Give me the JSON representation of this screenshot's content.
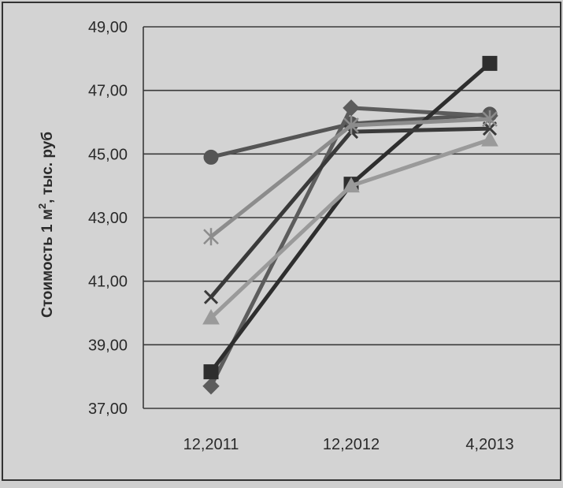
{
  "chart_data": {
    "type": "line",
    "ylabel_main": "Стоимость 1 м",
    "ylabel_sup": "2",
    "ylabel_tail": ", тыс. руб",
    "categories": [
      "12,2011",
      "12,2012",
      "4,2013"
    ],
    "ylim": [
      37,
      49
    ],
    "yticks": [
      "37,00",
      "39,00",
      "41,00",
      "43,00",
      "45,00",
      "47,00",
      "49,00"
    ],
    "ytick_values": [
      37,
      39,
      41,
      43,
      45,
      47,
      49
    ],
    "grid": true,
    "legend": "none",
    "series": [
      {
        "marker": "circle",
        "color": "#555555",
        "values": [
          44.9,
          45.95,
          46.25
        ]
      },
      {
        "marker": "diamond",
        "color": "#5c5c5c",
        "values": [
          37.7,
          46.45,
          46.2
        ]
      },
      {
        "marker": "square",
        "color": "#2e2e2e",
        "values": [
          38.15,
          44.05,
          47.85
        ]
      },
      {
        "marker": "triangle",
        "color": "#9a9a9a",
        "values": [
          39.85,
          44.0,
          45.45
        ]
      },
      {
        "marker": "x",
        "color": "#3a3a3a",
        "values": [
          40.5,
          45.7,
          45.8
        ]
      },
      {
        "marker": "star",
        "color": "#8c8c8c",
        "values": [
          42.4,
          45.9,
          46.1
        ]
      }
    ]
  }
}
